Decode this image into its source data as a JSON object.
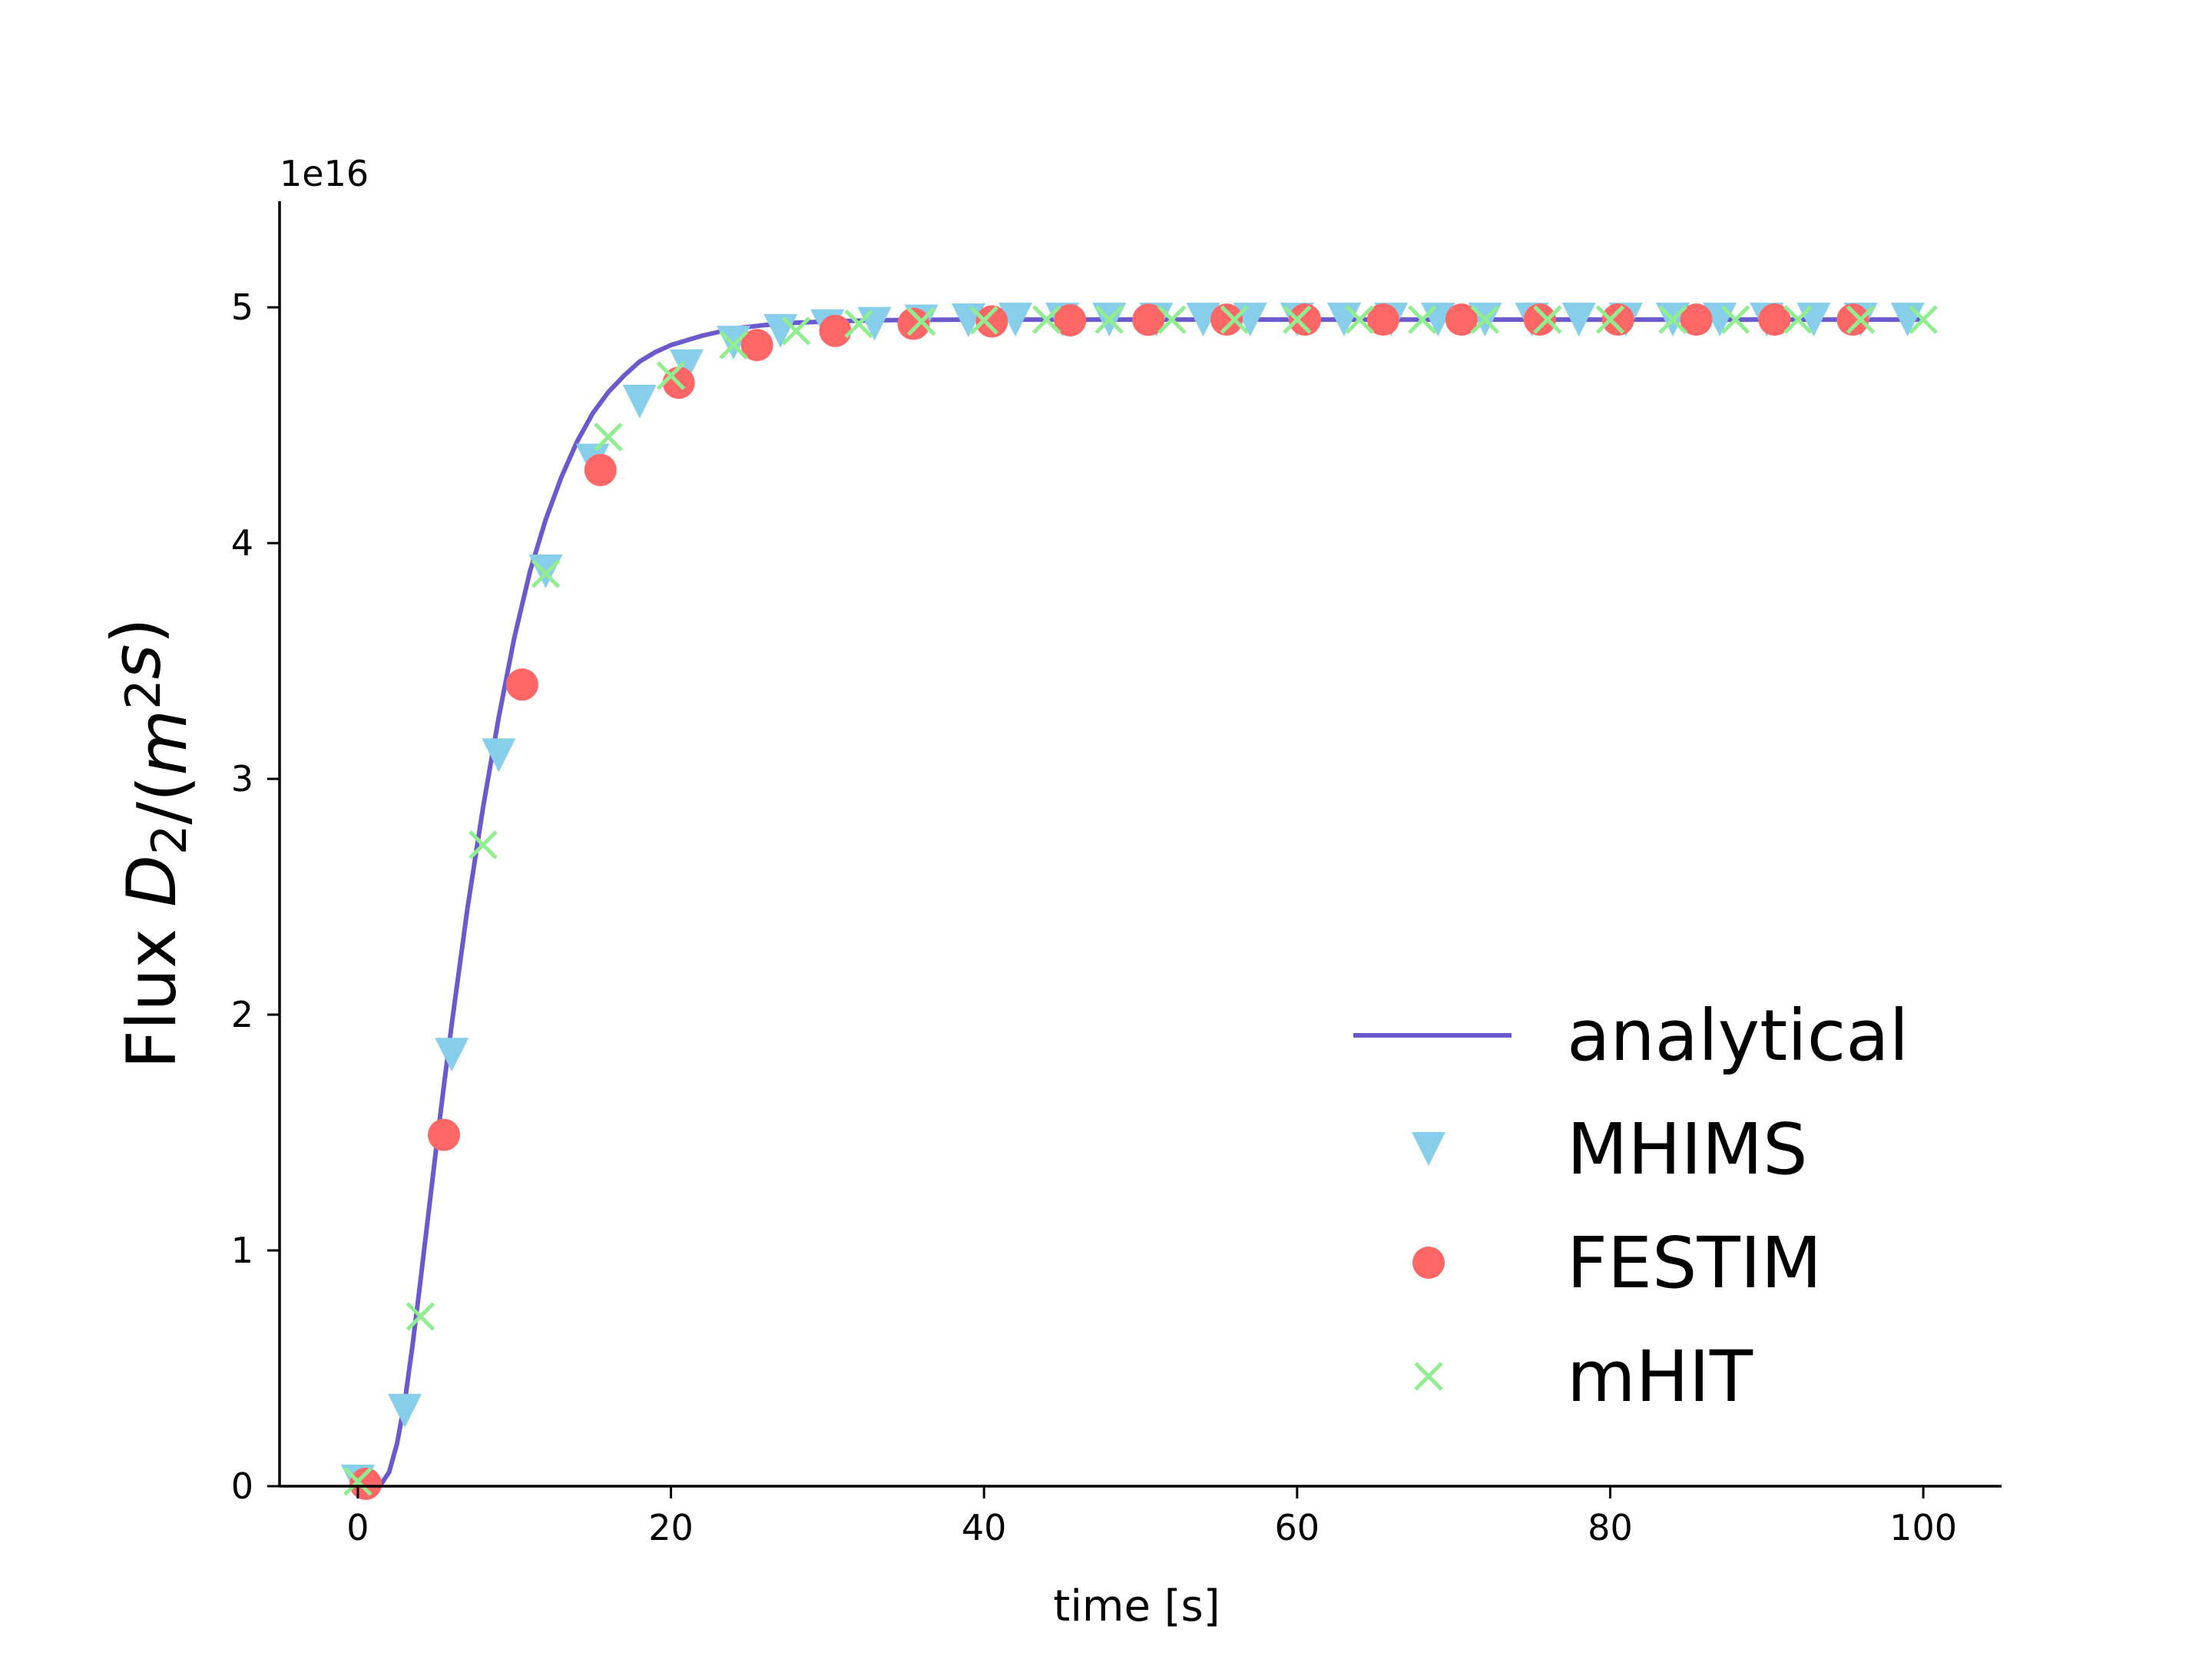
{
  "chart_data": {
    "type": "line",
    "xlabel": "time [s]",
    "ylabel": "Flux",
    "ylabel_math": {
      "var": "D",
      "sub": "2",
      "unit_open": "/(",
      "unit_var": "m",
      "unit_sup": "2",
      "unit_var2": "s",
      "unit_close": ")"
    },
    "offset_text": "1e16",
    "xlim": [
      -5,
      105
    ],
    "ylim": [
      0,
      5.45
    ],
    "x_ticks": [
      0,
      20,
      40,
      60,
      80,
      100
    ],
    "y_ticks": [
      0,
      1,
      2,
      3,
      4,
      5
    ],
    "x_tick_labels": [
      "0",
      "20",
      "40",
      "60",
      "80",
      "100"
    ],
    "y_tick_labels": [
      "0",
      "1",
      "2",
      "3",
      "4",
      "5"
    ],
    "legend_position": "lower-right",
    "series": [
      {
        "name": "analytical",
        "style": "line",
        "color": "#6a5acd",
        "x": [
          0,
          1,
          1.5,
          2,
          2.5,
          3,
          3.5,
          4,
          4.5,
          5,
          5.5,
          6,
          7,
          8,
          9,
          10,
          11,
          12,
          13,
          14,
          15,
          16,
          17,
          18,
          19,
          20,
          22,
          24,
          26,
          28,
          30,
          33,
          36,
          40,
          45,
          50,
          60,
          70,
          80,
          90,
          100
        ],
        "y": [
          0,
          0,
          0.01,
          0.06,
          0.18,
          0.36,
          0.6,
          0.87,
          1.15,
          1.43,
          1.7,
          1.96,
          2.45,
          2.88,
          3.26,
          3.6,
          3.88,
          4.1,
          4.28,
          4.43,
          4.55,
          4.64,
          4.71,
          4.77,
          4.81,
          4.84,
          4.88,
          4.91,
          4.925,
          4.935,
          4.94,
          4.945,
          4.947,
          4.948,
          4.948,
          4.948,
          4.948,
          4.948,
          4.948,
          4.948,
          4.948
        ]
      },
      {
        "name": "MHIMS",
        "style": "triangle-down",
        "color": "#87ceeb",
        "x": [
          0,
          3,
          6,
          9,
          12,
          15,
          18,
          21,
          24,
          27,
          30,
          33,
          36,
          39,
          42,
          45,
          48,
          51,
          54,
          57,
          60,
          63,
          66,
          69,
          72,
          75,
          78,
          81,
          84,
          87,
          90,
          93,
          96,
          99
        ],
        "y": [
          0.02,
          0.32,
          1.83,
          3.1,
          3.88,
          4.35,
          4.6,
          4.75,
          4.85,
          4.9,
          4.92,
          4.93,
          4.94,
          4.945,
          4.948,
          4.948,
          4.948,
          4.948,
          4.948,
          4.948,
          4.948,
          4.948,
          4.948,
          4.948,
          4.948,
          4.948,
          4.948,
          4.948,
          4.948,
          4.948,
          4.948,
          4.948,
          4.948,
          4.948
        ]
      },
      {
        "name": "FESTIM",
        "style": "circle",
        "color": "#ff6666",
        "x": [
          0.5,
          5.5,
          10.5,
          15.5,
          20.5,
          25.5,
          30.5,
          35.5,
          40.5,
          45.5,
          50.5,
          55.5,
          60.5,
          65.5,
          70.5,
          75.5,
          80.5,
          85.5,
          90.5,
          95.5
        ],
        "y": [
          0.01,
          1.49,
          3.4,
          4.31,
          4.68,
          4.84,
          4.9,
          4.93,
          4.94,
          4.945,
          4.947,
          4.948,
          4.948,
          4.948,
          4.948,
          4.948,
          4.948,
          4.948,
          4.948,
          4.948
        ]
      },
      {
        "name": "mHIT",
        "style": "x",
        "color": "#90ee90",
        "x": [
          0,
          4,
          8,
          12,
          16,
          20,
          24,
          28,
          32,
          36,
          40,
          44,
          48,
          52,
          56,
          60,
          64,
          68,
          72,
          76,
          80,
          84,
          88,
          92,
          96,
          100
        ],
        "y": [
          0.02,
          0.72,
          2.72,
          3.87,
          4.45,
          4.71,
          4.84,
          4.9,
          4.93,
          4.94,
          4.945,
          4.948,
          4.948,
          4.948,
          4.948,
          4.948,
          4.948,
          4.948,
          4.948,
          4.948,
          4.948,
          4.948,
          4.948,
          4.948,
          4.948,
          4.948
        ]
      }
    ]
  }
}
